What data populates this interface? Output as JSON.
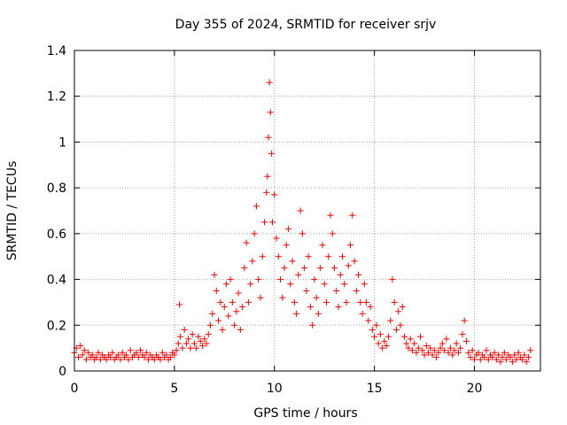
{
  "chart_data": {
    "type": "scatter",
    "title": "Day 355 of 2024, SRMTID for receiver srjv",
    "xlabel": "GPS time / hours",
    "ylabel": "SRMTID / TECUs",
    "xlim": [
      0,
      23.3
    ],
    "ylim": [
      0,
      1.4
    ],
    "x_ticks": [
      0,
      5,
      10,
      15,
      20
    ],
    "x_tick_labels": [
      "0",
      "5",
      "10",
      "15",
      "20"
    ],
    "y_ticks": [
      0,
      0.2,
      0.4,
      0.6,
      0.8,
      1.0,
      1.2,
      1.4
    ],
    "y_tick_labels": [
      "0",
      "0.2",
      "0.4",
      "0.6",
      "0.8",
      "1",
      "1.2",
      "1.4"
    ],
    "grid": true,
    "marker": "+",
    "series_color": "#ff0000",
    "series": [
      {
        "name": "srjv",
        "x": [
          0.0,
          0.1,
          0.2,
          0.3,
          0.4,
          0.5,
          0.6,
          0.7,
          0.8,
          0.9,
          1.0,
          1.1,
          1.2,
          1.3,
          1.4,
          1.5,
          1.6,
          1.7,
          1.8,
          1.9,
          2.0,
          2.1,
          2.2,
          2.3,
          2.4,
          2.5,
          2.6,
          2.7,
          2.8,
          2.9,
          3.0,
          3.1,
          3.2,
          3.3,
          3.4,
          3.5,
          3.6,
          3.7,
          3.8,
          3.9,
          4.0,
          4.1,
          4.2,
          4.3,
          4.4,
          4.5,
          4.6,
          4.7,
          4.8,
          4.9,
          5.0,
          5.1,
          5.2,
          5.25,
          5.3,
          5.4,
          5.5,
          5.6,
          5.7,
          5.8,
          5.9,
          6.0,
          6.1,
          6.2,
          6.3,
          6.4,
          6.5,
          6.6,
          6.7,
          6.8,
          6.9,
          7.0,
          7.1,
          7.2,
          7.3,
          7.4,
          7.5,
          7.6,
          7.7,
          7.8,
          7.9,
          8.0,
          8.1,
          8.2,
          8.3,
          8.4,
          8.5,
          8.6,
          8.7,
          8.8,
          8.9,
          9.0,
          9.1,
          9.2,
          9.3,
          9.4,
          9.5,
          9.6,
          9.65,
          9.7,
          9.75,
          9.8,
          9.85,
          9.9,
          10.0,
          10.1,
          10.2,
          10.3,
          10.4,
          10.5,
          10.6,
          10.7,
          10.8,
          10.9,
          11.0,
          11.1,
          11.2,
          11.3,
          11.4,
          11.5,
          11.6,
          11.7,
          11.8,
          11.9,
          12.0,
          12.1,
          12.2,
          12.3,
          12.4,
          12.5,
          12.6,
          12.7,
          12.8,
          12.9,
          13.0,
          13.1,
          13.2,
          13.3,
          13.4,
          13.5,
          13.6,
          13.7,
          13.8,
          13.9,
          14.0,
          14.1,
          14.2,
          14.3,
          14.4,
          14.5,
          14.6,
          14.7,
          14.8,
          14.9,
          15.0,
          15.1,
          15.2,
          15.3,
          15.4,
          15.5,
          15.6,
          15.7,
          15.8,
          15.9,
          16.0,
          16.1,
          16.2,
          16.3,
          16.4,
          16.5,
          16.6,
          16.7,
          16.8,
          16.9,
          17.0,
          17.1,
          17.2,
          17.3,
          17.4,
          17.5,
          17.6,
          17.7,
          17.8,
          17.9,
          18.0,
          18.1,
          18.2,
          18.3,
          18.4,
          18.5,
          18.6,
          18.7,
          18.8,
          18.9,
          19.0,
          19.1,
          19.2,
          19.3,
          19.4,
          19.5,
          19.6,
          19.7,
          19.8,
          19.9,
          20.0,
          20.1,
          20.2,
          20.3,
          20.4,
          20.5,
          20.6,
          20.7,
          20.8,
          20.9,
          21.0,
          21.1,
          21.2,
          21.3,
          21.4,
          21.5,
          21.6,
          21.7,
          21.8,
          21.9,
          22.0,
          22.1,
          22.2,
          22.3,
          22.4,
          22.5,
          22.6,
          22.7,
          22.8
        ],
        "y": [
          0.08,
          0.1,
          0.06,
          0.11,
          0.07,
          0.09,
          0.05,
          0.08,
          0.06,
          0.07,
          0.05,
          0.06,
          0.08,
          0.05,
          0.07,
          0.06,
          0.05,
          0.07,
          0.06,
          0.08,
          0.05,
          0.06,
          0.07,
          0.05,
          0.08,
          0.06,
          0.07,
          0.05,
          0.09,
          0.06,
          0.07,
          0.08,
          0.06,
          0.09,
          0.07,
          0.06,
          0.08,
          0.05,
          0.07,
          0.06,
          0.05,
          0.07,
          0.06,
          0.05,
          0.08,
          0.06,
          0.07,
          0.05,
          0.06,
          0.08,
          0.07,
          0.09,
          0.12,
          0.29,
          0.15,
          0.1,
          0.18,
          0.12,
          0.14,
          0.1,
          0.16,
          0.12,
          0.1,
          0.15,
          0.13,
          0.11,
          0.14,
          0.12,
          0.16,
          0.2,
          0.25,
          0.42,
          0.35,
          0.22,
          0.3,
          0.18,
          0.28,
          0.38,
          0.24,
          0.4,
          0.3,
          0.2,
          0.26,
          0.34,
          0.18,
          0.28,
          0.45,
          0.56,
          0.3,
          0.38,
          0.48,
          0.6,
          0.72,
          0.4,
          0.32,
          0.5,
          0.65,
          0.78,
          0.85,
          1.02,
          1.26,
          1.13,
          0.95,
          0.65,
          0.77,
          0.58,
          0.5,
          0.4,
          0.32,
          0.45,
          0.55,
          0.62,
          0.38,
          0.48,
          0.3,
          0.25,
          0.42,
          0.7,
          0.6,
          0.45,
          0.35,
          0.5,
          0.28,
          0.2,
          0.4,
          0.32,
          0.25,
          0.45,
          0.55,
          0.38,
          0.3,
          0.5,
          0.68,
          0.6,
          0.45,
          0.35,
          0.28,
          0.42,
          0.5,
          0.38,
          0.3,
          0.46,
          0.55,
          0.68,
          0.48,
          0.35,
          0.42,
          0.3,
          0.25,
          0.38,
          0.3,
          0.22,
          0.28,
          0.18,
          0.15,
          0.2,
          0.12,
          0.16,
          0.1,
          0.13,
          0.11,
          0.15,
          0.22,
          0.4,
          0.3,
          0.18,
          0.26,
          0.2,
          0.28,
          0.15,
          0.12,
          0.1,
          0.14,
          0.09,
          0.12,
          0.08,
          0.1,
          0.15,
          0.09,
          0.07,
          0.11,
          0.08,
          0.1,
          0.07,
          0.09,
          0.06,
          0.08,
          0.1,
          0.12,
          0.09,
          0.14,
          0.08,
          0.1,
          0.07,
          0.09,
          0.12,
          0.08,
          0.1,
          0.16,
          0.22,
          0.13,
          0.08,
          0.06,
          0.09,
          0.05,
          0.07,
          0.08,
          0.05,
          0.07,
          0.06,
          0.09,
          0.05,
          0.07,
          0.06,
          0.08,
          0.05,
          0.07,
          0.04,
          0.06,
          0.08,
          0.05,
          0.07,
          0.06,
          0.04,
          0.07,
          0.05,
          0.08,
          0.06,
          0.05,
          0.07,
          0.04,
          0.06,
          0.09
        ]
      }
    ]
  }
}
